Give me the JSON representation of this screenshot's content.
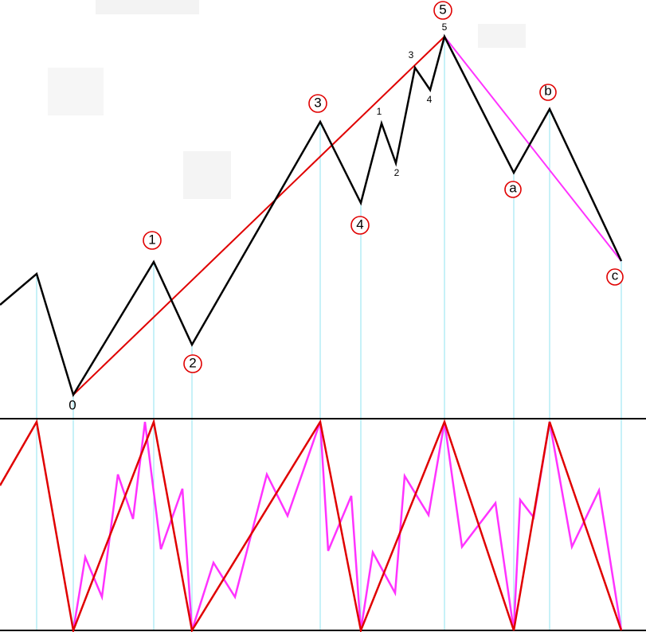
{
  "waves": {
    "main": [
      "0",
      "1",
      "2",
      "3",
      "4",
      "5"
    ],
    "corrective": [
      "a",
      "b",
      "c"
    ],
    "sub": [
      "1",
      "2",
      "3",
      "4",
      "5"
    ]
  }
}
